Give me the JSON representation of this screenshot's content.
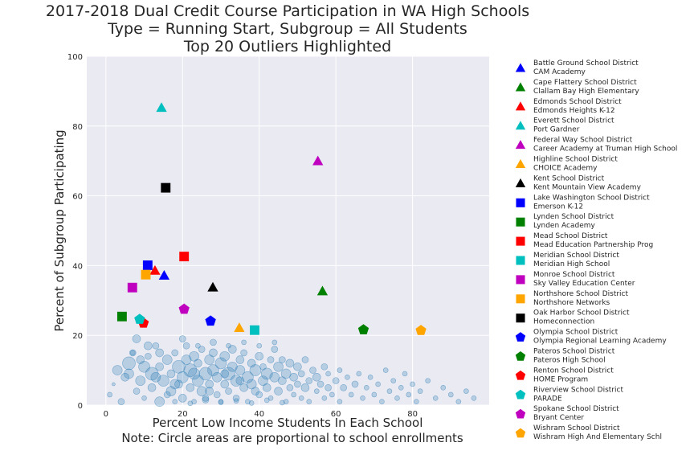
{
  "chart_data": {
    "type": "scatter",
    "title": [
      "2017-2018 Dual Credit Course Participation in WA High Schools",
      "Type = Running Start, Subgroup = All Students",
      "Top 20 Outliers Highlighted"
    ],
    "xlabel": [
      "Percent Low Income Students In Each School",
      "Note: Circle areas are proportional to school enrollments"
    ],
    "ylabel": "Percent of Subgroup Participating",
    "xlim": [
      -5,
      100
    ],
    "ylim": [
      0,
      100
    ],
    "xticks": [
      0,
      20,
      40,
      60,
      80
    ],
    "yticks": [
      0,
      20,
      40,
      60,
      80,
      100
    ],
    "grid": true,
    "legend_position": "outside-right",
    "background_color": "#eaeaf2",
    "bubble_color": "#1f77b4",
    "outliers": [
      {
        "district": "Battle Ground School District",
        "school": "CAM Academy",
        "marker": "triangle",
        "color": "#0000ff",
        "x": 15.2,
        "y": 37.1
      },
      {
        "district": "Cape Flattery School District",
        "school": "Clallam Bay High   Elementary",
        "marker": "triangle",
        "color": "#008000",
        "x": 56.5,
        "y": 32.6
      },
      {
        "district": "Edmonds School District",
        "school": "Edmonds Heights K-12",
        "marker": "triangle",
        "color": "#ff0000",
        "x": 12.8,
        "y": 38.5
      },
      {
        "district": "Everett School District",
        "school": "Port Gardner",
        "marker": "triangle",
        "color": "#00bfbf",
        "x": 14.5,
        "y": 85.2
      },
      {
        "district": "Federal Way School District",
        "school": "Career Academy at Truman High School",
        "marker": "triangle",
        "color": "#bf00bf",
        "x": 55.3,
        "y": 69.9
      },
      {
        "district": "Highline School District",
        "school": "CHOICE Academy",
        "marker": "triangle",
        "color": "#ffa500",
        "x": 34.8,
        "y": 22.1
      },
      {
        "district": "Kent School District",
        "school": "Kent Mountain View Academy",
        "marker": "triangle",
        "color": "#000000",
        "x": 27.9,
        "y": 33.7
      },
      {
        "district": "Lake Washington School District",
        "school": "Emerson K-12",
        "marker": "square",
        "color": "#0000ff",
        "x": 10.9,
        "y": 40.1
      },
      {
        "district": "Lynden School District",
        "school": "Lynden Academy",
        "marker": "square",
        "color": "#008000",
        "x": 4.2,
        "y": 25.4
      },
      {
        "district": "Mead School District",
        "school": "Mead Education Partnership Prog",
        "marker": "square",
        "color": "#ff0000",
        "x": 20.4,
        "y": 42.6
      },
      {
        "district": "Meridian School District",
        "school": "Meridian High School",
        "marker": "square",
        "color": "#00bfbf",
        "x": 38.8,
        "y": 21.5
      },
      {
        "district": "Monroe School District",
        "school": "Sky Valley Education Center",
        "marker": "square",
        "color": "#bf00bf",
        "x": 6.9,
        "y": 33.7
      },
      {
        "district": "Northshore School District",
        "school": "Northshore Networks",
        "marker": "square",
        "color": "#ffa500",
        "x": 10.4,
        "y": 37.4
      },
      {
        "district": "Oak Harbor School District",
        "school": "Homeconnection",
        "marker": "square",
        "color": "#000000",
        "x": 15.6,
        "y": 62.3
      },
      {
        "district": "Olympia School District",
        "school": "Olympia Regional Learning Academy",
        "marker": "pentagon",
        "color": "#0000ff",
        "x": 27.3,
        "y": 24.1
      },
      {
        "district": "Pateros School District",
        "school": "Pateros High School",
        "marker": "pentagon",
        "color": "#008000",
        "x": 67.2,
        "y": 21.6
      },
      {
        "district": "Renton School District",
        "school": "HOME Program",
        "marker": "pentagon",
        "color": "#ff0000",
        "x": 9.8,
        "y": 23.5
      },
      {
        "district": "Riverview School District",
        "school": "PARADE",
        "marker": "pentagon",
        "color": "#00bfbf",
        "x": 8.8,
        "y": 24.6
      },
      {
        "district": "Spokane School District",
        "school": "Bryant Center",
        "marker": "pentagon",
        "color": "#bf00bf",
        "x": 20.4,
        "y": 27.5
      },
      {
        "district": "Wishram School District",
        "school": "Wishram High And Elementary Schl",
        "marker": "pentagon",
        "color": "#ffa500",
        "x": 82.2,
        "y": 21.4
      }
    ],
    "background_schools_note": "blue translucent bubbles, mostly x 0-95, y 0-20",
    "background_bubbles": [
      [
        1,
        3,
        3
      ],
      [
        2,
        6,
        2
      ],
      [
        3,
        10,
        6
      ],
      [
        4,
        1,
        4
      ],
      [
        5,
        8,
        5
      ],
      [
        6,
        12,
        8
      ],
      [
        7,
        15,
        3
      ],
      [
        8,
        4,
        4
      ],
      [
        8,
        19,
        5
      ],
      [
        9,
        7,
        6
      ],
      [
        10,
        11,
        7
      ],
      [
        10,
        2,
        3
      ],
      [
        11,
        14,
        4
      ],
      [
        12,
        9,
        8
      ],
      [
        12,
        5,
        5
      ],
      [
        13,
        17,
        4
      ],
      [
        14,
        1,
        6
      ],
      [
        14,
        11,
        5
      ],
      [
        15,
        7,
        7
      ],
      [
        16,
        13,
        6
      ],
      [
        16,
        3,
        4
      ],
      [
        17,
        9,
        5
      ],
      [
        18,
        15,
        4
      ],
      [
        18,
        6,
        6
      ],
      [
        19,
        11,
        8
      ],
      [
        20,
        2,
        5
      ],
      [
        20,
        8,
        7
      ],
      [
        21,
        13,
        6
      ],
      [
        21,
        17,
        4
      ],
      [
        22,
        5,
        5
      ],
      [
        22,
        10,
        8
      ],
      [
        23,
        14,
        6
      ],
      [
        23,
        1,
        3
      ],
      [
        24,
        7,
        7
      ],
      [
        24,
        12,
        5
      ],
      [
        25,
        4,
        6
      ],
      [
        25,
        16,
        4
      ],
      [
        26,
        9,
        8
      ],
      [
        26,
        2,
        4
      ],
      [
        27,
        13,
        6
      ],
      [
        27,
        6,
        5
      ],
      [
        28,
        10,
        7
      ],
      [
        28,
        15,
        5
      ],
      [
        29,
        3,
        4
      ],
      [
        29,
        8,
        6
      ],
      [
        30,
        12,
        7
      ],
      [
        30,
        1,
        3
      ],
      [
        31,
        6,
        5
      ],
      [
        31,
        14,
        6
      ],
      [
        32,
        9,
        8
      ],
      [
        32,
        4,
        4
      ],
      [
        33,
        11,
        6
      ],
      [
        33,
        16,
        5
      ],
      [
        34,
        2,
        4
      ],
      [
        34,
        7,
        7
      ],
      [
        35,
        13,
        5
      ],
      [
        35,
        10,
        6
      ],
      [
        36,
        5,
        5
      ],
      [
        36,
        15,
        4
      ],
      [
        37,
        8,
        7
      ],
      [
        37,
        1,
        3
      ],
      [
        38,
        12,
        5
      ],
      [
        38,
        6,
        6
      ],
      [
        39,
        10,
        7
      ],
      [
        40,
        3,
        4
      ],
      [
        40,
        14,
        5
      ],
      [
        41,
        7,
        6
      ],
      [
        41,
        11,
        4
      ],
      [
        42,
        5,
        5
      ],
      [
        42,
        9,
        7
      ],
      [
        43,
        13,
        4
      ],
      [
        43,
        2,
        3
      ],
      [
        44,
        8,
        6
      ],
      [
        44,
        16,
        4
      ],
      [
        45,
        4,
        5
      ],
      [
        45,
        11,
        6
      ],
      [
        46,
        7,
        5
      ],
      [
        46,
        13,
        4
      ],
      [
        47,
        1,
        3
      ],
      [
        47,
        9,
        6
      ],
      [
        48,
        5,
        4
      ],
      [
        48,
        12,
        5
      ],
      [
        49,
        3,
        3
      ],
      [
        49,
        8,
        5
      ],
      [
        50,
        6,
        4
      ],
      [
        50,
        11,
        5
      ],
      [
        51,
        2,
        3
      ],
      [
        51,
        9,
        4
      ],
      [
        52,
        5,
        5
      ],
      [
        52,
        13,
        4
      ],
      [
        53,
        7,
        4
      ],
      [
        53,
        1,
        3
      ],
      [
        54,
        10,
        4
      ],
      [
        55,
        4,
        3
      ],
      [
        55,
        8,
        5
      ],
      [
        56,
        6,
        4
      ],
      [
        57,
        2,
        3
      ],
      [
        57,
        11,
        4
      ],
      [
        58,
        5,
        4
      ],
      [
        58,
        9,
        3
      ],
      [
        59,
        3,
        3
      ],
      [
        60,
        7,
        4
      ],
      [
        61,
        1,
        3
      ],
      [
        61,
        10,
        3
      ],
      [
        62,
        5,
        4
      ],
      [
        63,
        8,
        3
      ],
      [
        64,
        3,
        3
      ],
      [
        65,
        6,
        4
      ],
      [
        66,
        9,
        3
      ],
      [
        67,
        2,
        3
      ],
      [
        68,
        5,
        3
      ],
      [
        69,
        8,
        3
      ],
      [
        70,
        3,
        3
      ],
      [
        71,
        6,
        3
      ],
      [
        72,
        1,
        3
      ],
      [
        73,
        10,
        3
      ],
      [
        74,
        4,
        3
      ],
      [
        75,
        7,
        3
      ],
      [
        76,
        2,
        3
      ],
      [
        77,
        5,
        3
      ],
      [
        78,
        9,
        3
      ],
      [
        79,
        3,
        3
      ],
      [
        80,
        6,
        3
      ],
      [
        81,
        1,
        3
      ],
      [
        82,
        4,
        3
      ],
      [
        84,
        7,
        3
      ],
      [
        86,
        2,
        3
      ],
      [
        88,
        5,
        3
      ],
      [
        90,
        3,
        3
      ],
      [
        92,
        1,
        3
      ],
      [
        94,
        4,
        3
      ],
      [
        96,
        2,
        3
      ],
      [
        18,
        1,
        3
      ],
      [
        22,
        0.5,
        3
      ],
      [
        26,
        1.5,
        4
      ],
      [
        30,
        0.8,
        3
      ],
      [
        34,
        1.2,
        3
      ],
      [
        38,
        0.6,
        3
      ],
      [
        42,
        1.4,
        3
      ],
      [
        46,
        0.7,
        3
      ],
      [
        9,
        13,
        5
      ],
      [
        11,
        17,
        5
      ],
      [
        13,
        8,
        6
      ],
      [
        17,
        4,
        6
      ],
      [
        19,
        6,
        5
      ],
      [
        23,
        9,
        7
      ],
      [
        27,
        4,
        5
      ],
      [
        31,
        9,
        5
      ],
      [
        35,
        7,
        5
      ],
      [
        39,
        4,
        5
      ],
      [
        6,
        9,
        6
      ],
      [
        7,
        15,
        4
      ],
      [
        14,
        15,
        5
      ],
      [
        20,
        19,
        4
      ],
      [
        24,
        17,
        3
      ],
      [
        28,
        18,
        4
      ],
      [
        32,
        17,
        3
      ],
      [
        36,
        18,
        3
      ],
      [
        40,
        17,
        3
      ],
      [
        44,
        18,
        3
      ]
    ]
  }
}
